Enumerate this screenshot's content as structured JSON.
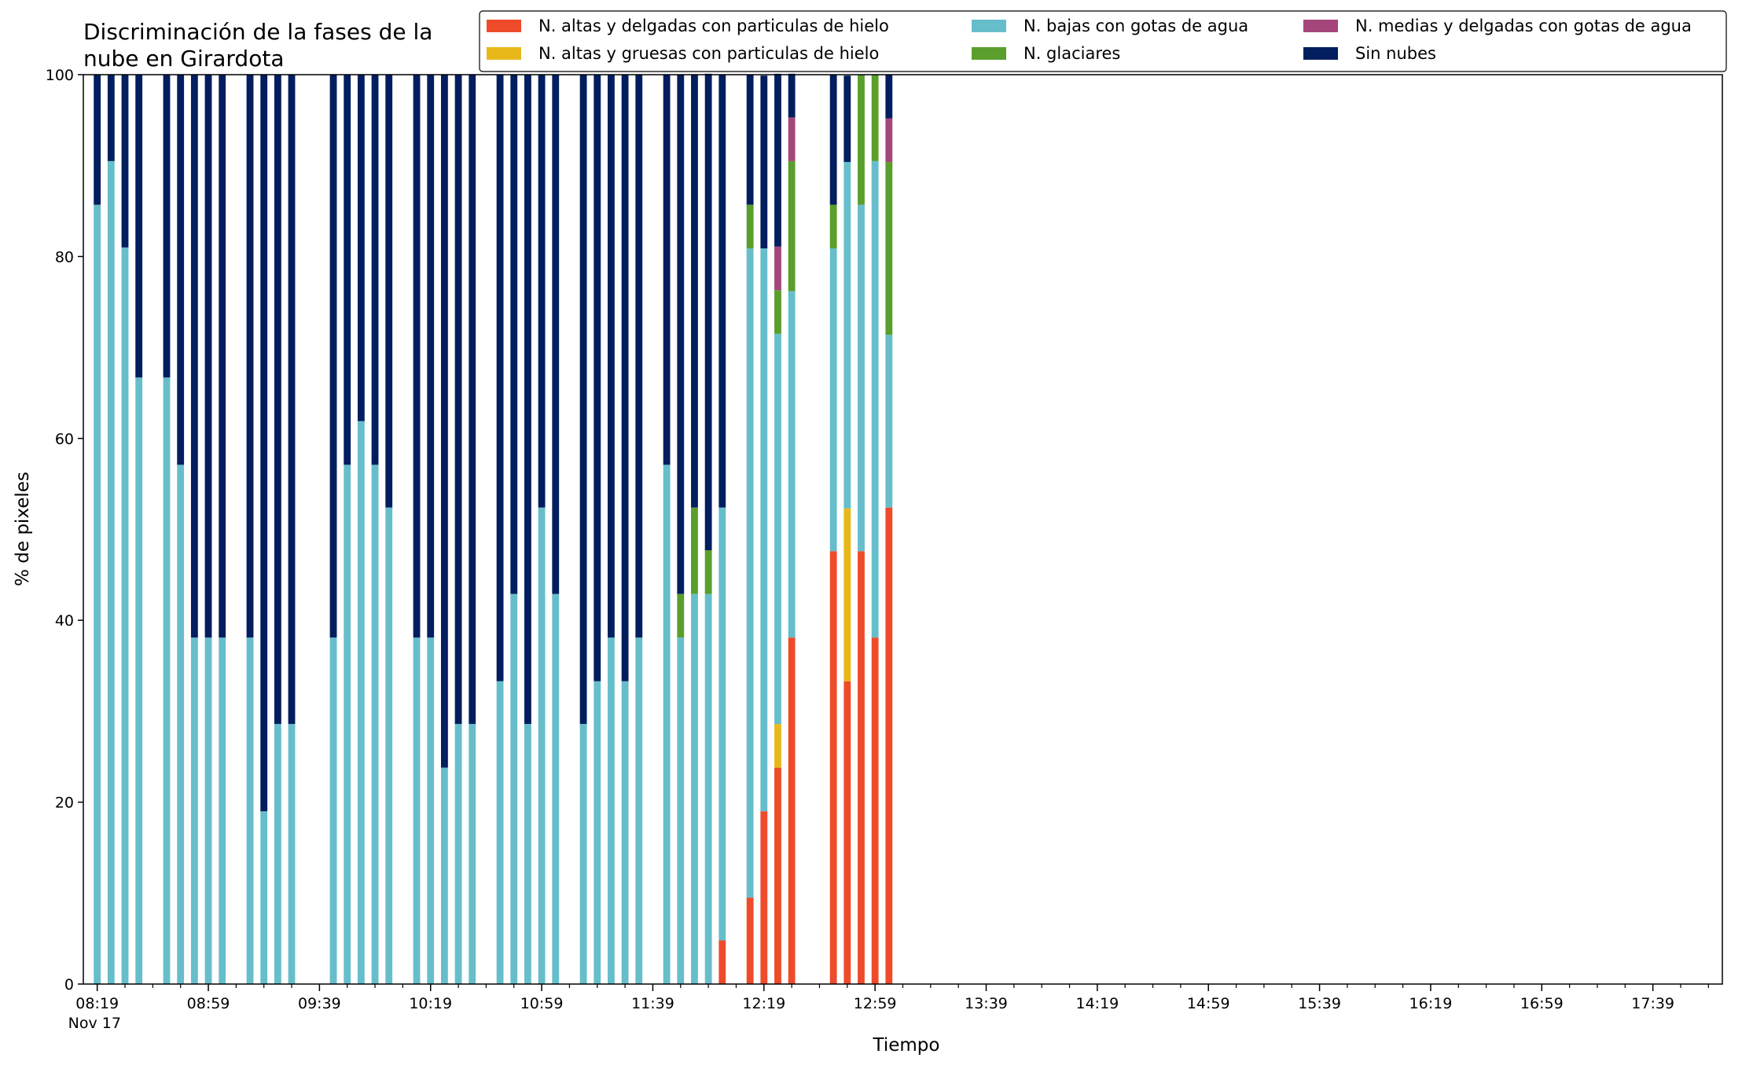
{
  "chart_data": {
    "type": "bar",
    "stacked": true,
    "title_lines": [
      "Discriminación de la fases de la",
      "nube en Girardota"
    ],
    "xlabel": "Tiempo",
    "ylabel": "% de pixeles",
    "ylim": [
      0,
      100
    ],
    "yticks": [
      "0",
      "20",
      "40",
      "60",
      "80",
      "100"
    ],
    "x_range": [
      "08:14",
      "18:04"
    ],
    "xticks_major": [
      {
        "t": "08:19",
        "label": "08:19",
        "sublabel": "Nov 17"
      },
      {
        "t": "08:59",
        "label": "08:59"
      },
      {
        "t": "09:39",
        "label": "09:39"
      },
      {
        "t": "10:19",
        "label": "10:19"
      },
      {
        "t": "10:59",
        "label": "10:59"
      },
      {
        "t": "11:39",
        "label": "11:39"
      },
      {
        "t": "12:19",
        "label": "12:19"
      },
      {
        "t": "12:59",
        "label": "12:59"
      },
      {
        "t": "13:39",
        "label": "13:39"
      },
      {
        "t": "14:19",
        "label": "14:19"
      },
      {
        "t": "14:59",
        "label": "14:59"
      },
      {
        "t": "15:39",
        "label": "15:39"
      },
      {
        "t": "16:19",
        "label": "16:19"
      },
      {
        "t": "16:59",
        "label": "16:59"
      },
      {
        "t": "17:39",
        "label": "17:39"
      }
    ],
    "legend_position": "top-right",
    "legend_columns": [
      [
        "N. altas y delgadas con particulas de hielo",
        "N. altas y gruesas con particulas de hielo"
      ],
      [
        "N. bajas con gotas de agua",
        "N. glaciares"
      ],
      [
        "N. medias y delgadas con gotas de agua",
        "Sin nubes"
      ]
    ],
    "series": [
      {
        "name": "N. altas y delgadas con particulas de hielo",
        "color": "#ee4b2b"
      },
      {
        "name": "N. altas y gruesas con particulas de hielo",
        "color": "#e8b81a"
      },
      {
        "name": "N. bajas con gotas de agua",
        "color": "#67becb"
      },
      {
        "name": "N. glaciares",
        "color": "#5a9e2c"
      },
      {
        "name": "N. medias y delgadas con gotas de agua",
        "color": "#a5467b"
      },
      {
        "name": "Sin nubes",
        "color": "#021e5f"
      }
    ],
    "bars": [
      {
        "t": "08:19",
        "values": [
          0,
          0,
          85.7,
          0,
          0,
          14.3
        ]
      },
      {
        "t": "08:24",
        "values": [
          0,
          0,
          90.5,
          0,
          0,
          9.5
        ]
      },
      {
        "t": "08:29",
        "values": [
          0,
          0,
          81.0,
          0,
          0,
          19.0
        ]
      },
      {
        "t": "08:34",
        "values": [
          0,
          0,
          66.7,
          0,
          0,
          33.3
        ]
      },
      {
        "t": "08:44",
        "values": [
          0,
          0,
          66.7,
          0,
          0,
          33.3
        ]
      },
      {
        "t": "08:49",
        "values": [
          0,
          0,
          57.1,
          0,
          0,
          42.9
        ]
      },
      {
        "t": "08:54",
        "values": [
          0,
          0,
          38.1,
          0,
          0,
          61.9
        ]
      },
      {
        "t": "08:59",
        "values": [
          0,
          0,
          38.1,
          0,
          0,
          61.9
        ]
      },
      {
        "t": "09:04",
        "values": [
          0,
          0,
          38.1,
          0,
          0,
          61.9
        ]
      },
      {
        "t": "09:14",
        "values": [
          0,
          0,
          38.1,
          0,
          0,
          61.9
        ]
      },
      {
        "t": "09:19",
        "values": [
          0,
          0,
          19.0,
          0,
          0,
          81.0
        ]
      },
      {
        "t": "09:24",
        "values": [
          0,
          0,
          28.6,
          0,
          0,
          71.4
        ]
      },
      {
        "t": "09:29",
        "values": [
          0,
          0,
          28.6,
          0,
          0,
          71.4
        ]
      },
      {
        "t": "09:44",
        "values": [
          0,
          0,
          38.1,
          0,
          0,
          61.9
        ]
      },
      {
        "t": "09:49",
        "values": [
          0,
          0,
          57.1,
          0,
          0,
          42.9
        ]
      },
      {
        "t": "09:54",
        "values": [
          0,
          0,
          61.9,
          0,
          0,
          38.1
        ]
      },
      {
        "t": "09:59",
        "values": [
          0,
          0,
          57.1,
          0,
          0,
          42.9
        ]
      },
      {
        "t": "10:04",
        "values": [
          0,
          0,
          52.4,
          0,
          0,
          47.6
        ]
      },
      {
        "t": "10:14",
        "values": [
          0,
          0,
          38.1,
          0,
          0,
          61.9
        ]
      },
      {
        "t": "10:19",
        "values": [
          0,
          0,
          38.1,
          0,
          0,
          61.9
        ]
      },
      {
        "t": "10:24",
        "values": [
          0,
          0,
          23.8,
          0,
          0,
          76.2
        ]
      },
      {
        "t": "10:29",
        "values": [
          0,
          0,
          28.6,
          0,
          0,
          71.4
        ]
      },
      {
        "t": "10:34",
        "values": [
          0,
          0,
          28.6,
          0,
          0,
          71.4
        ]
      },
      {
        "t": "10:44",
        "values": [
          0,
          0,
          33.3,
          0,
          0,
          66.7
        ]
      },
      {
        "t": "10:49",
        "values": [
          0,
          0,
          42.9,
          0,
          0,
          57.1
        ]
      },
      {
        "t": "10:54",
        "values": [
          0,
          0,
          28.6,
          0,
          0,
          71.4
        ]
      },
      {
        "t": "10:59",
        "values": [
          0,
          0,
          52.4,
          0,
          0,
          47.6
        ]
      },
      {
        "t": "11:04",
        "values": [
          0,
          0,
          42.9,
          0,
          0,
          57.1
        ]
      },
      {
        "t": "11:14",
        "values": [
          0,
          0,
          28.6,
          0,
          0,
          71.4
        ]
      },
      {
        "t": "11:19",
        "values": [
          0,
          0,
          33.3,
          0,
          0,
          66.7
        ]
      },
      {
        "t": "11:24",
        "values": [
          0,
          0,
          38.1,
          0,
          0,
          61.9
        ]
      },
      {
        "t": "11:29",
        "values": [
          0,
          0,
          33.3,
          0,
          0,
          66.7
        ]
      },
      {
        "t": "11:34",
        "values": [
          0,
          0,
          38.1,
          0,
          0,
          61.9
        ]
      },
      {
        "t": "11:44",
        "values": [
          0,
          0,
          57.1,
          0,
          0,
          42.9
        ]
      },
      {
        "t": "11:49",
        "values": [
          0,
          0,
          38.1,
          4.8,
          0,
          57.1
        ]
      },
      {
        "t": "11:54",
        "values": [
          0,
          0,
          42.9,
          9.5,
          0,
          47.6
        ]
      },
      {
        "t": "11:59",
        "values": [
          0,
          0,
          42.9,
          4.8,
          0,
          52.4
        ]
      },
      {
        "t": "12:04",
        "values": [
          4.8,
          0,
          47.6,
          0,
          0,
          47.6
        ]
      },
      {
        "t": "12:14",
        "values": [
          9.5,
          0,
          71.4,
          4.8,
          0,
          14.3
        ]
      },
      {
        "t": "12:19",
        "values": [
          19.0,
          0,
          61.9,
          0,
          0,
          19.0
        ]
      },
      {
        "t": "12:24",
        "values": [
          23.8,
          4.8,
          42.9,
          4.8,
          4.8,
          19.0
        ]
      },
      {
        "t": "12:29",
        "values": [
          38.1,
          0,
          38.1,
          14.3,
          4.8,
          4.8
        ]
      },
      {
        "t": "12:44",
        "values": [
          47.6,
          0,
          33.3,
          4.8,
          0,
          14.3
        ]
      },
      {
        "t": "12:49",
        "values": [
          33.3,
          19.0,
          38.1,
          0,
          0,
          9.5
        ]
      },
      {
        "t": "12:54",
        "values": [
          47.6,
          0,
          38.1,
          14.3,
          0,
          0
        ]
      },
      {
        "t": "12:59",
        "values": [
          38.1,
          0,
          52.4,
          9.5,
          0,
          0
        ]
      },
      {
        "t": "13:04",
        "values": [
          52.4,
          0,
          19.0,
          19.0,
          4.8,
          4.8
        ]
      }
    ]
  }
}
